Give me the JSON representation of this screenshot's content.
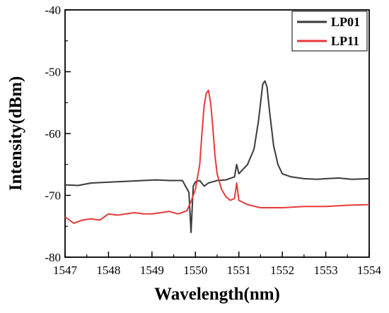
{
  "chart_data": {
    "type": "line",
    "xlabel": "Wavelength(nm)",
    "ylabel": "Intensity(dBm)",
    "xlim": [
      1547,
      1554
    ],
    "ylim": [
      -80,
      -40
    ],
    "xticks": [
      "1547",
      "1548",
      "1549",
      "1550",
      "1551",
      "1552",
      "1553",
      "1554"
    ],
    "yticks": [
      "-80",
      "-70",
      "-60",
      "-50",
      "-40"
    ],
    "legend_position": "top-right",
    "grid": false,
    "series": [
      {
        "name": "LP01",
        "color": "#3a3a3a",
        "x": [
          1547.0,
          1547.3,
          1547.6,
          1547.9,
          1548.2,
          1548.5,
          1548.8,
          1549.1,
          1549.4,
          1549.7,
          1549.85,
          1549.9,
          1549.95,
          1550.0,
          1550.1,
          1550.2,
          1550.3,
          1550.4,
          1550.5,
          1550.7,
          1550.9,
          1550.95,
          1551.0,
          1551.2,
          1551.35,
          1551.45,
          1551.55,
          1551.6,
          1551.65,
          1551.7,
          1551.8,
          1551.9,
          1552.0,
          1552.2,
          1552.5,
          1552.8,
          1553.0,
          1553.3,
          1553.6,
          1554.0
        ],
        "y": [
          -68.3,
          -68.4,
          -68.0,
          -67.9,
          -67.8,
          -67.7,
          -67.6,
          -67.5,
          -67.6,
          -67.6,
          -69.5,
          -76.0,
          -68.5,
          -67.8,
          -67.6,
          -68.5,
          -68.0,
          -67.8,
          -67.6,
          -67.5,
          -67.0,
          -65.0,
          -66.5,
          -65.0,
          -62.5,
          -58.0,
          -52.0,
          -51.5,
          -52.5,
          -56.0,
          -62.0,
          -65.0,
          -66.5,
          -67.0,
          -67.3,
          -67.4,
          -67.3,
          -67.2,
          -67.4,
          -67.3
        ]
      },
      {
        "name": "LP11",
        "color": "#e8393a",
        "x": [
          1547.0,
          1547.2,
          1547.4,
          1547.6,
          1547.8,
          1548.0,
          1548.2,
          1548.4,
          1548.6,
          1548.8,
          1549.0,
          1549.2,
          1549.4,
          1549.6,
          1549.8,
          1549.9,
          1550.0,
          1550.1,
          1550.15,
          1550.2,
          1550.25,
          1550.3,
          1550.35,
          1550.4,
          1550.45,
          1550.5,
          1550.6,
          1550.7,
          1550.8,
          1550.9,
          1550.95,
          1551.0,
          1551.2,
          1551.5,
          1552.0,
          1552.5,
          1553.0,
          1553.5,
          1554.0
        ],
        "y": [
          -73.5,
          -74.5,
          -74.0,
          -73.8,
          -74.0,
          -73.0,
          -73.2,
          -73.0,
          -72.8,
          -73.0,
          -73.0,
          -72.8,
          -72.6,
          -73.0,
          -72.5,
          -71.0,
          -69.0,
          -65.0,
          -60.0,
          -55.5,
          -53.5,
          -53.0,
          -55.0,
          -59.0,
          -63.5,
          -66.5,
          -69.0,
          -70.2,
          -70.8,
          -70.5,
          -68.0,
          -70.8,
          -71.5,
          -72.0,
          -72.0,
          -71.8,
          -71.8,
          -71.6,
          -71.5
        ]
      }
    ]
  }
}
